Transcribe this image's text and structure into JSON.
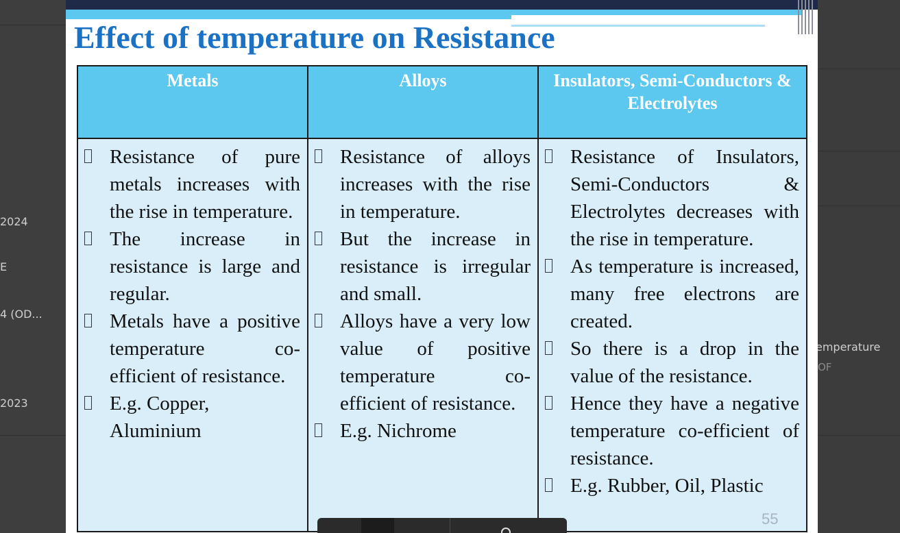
{
  "background": {
    "left_items": [
      "2024",
      "E",
      "4 (OD...",
      "2023"
    ],
    "right_items": [
      "emperature",
      "OF"
    ]
  },
  "slide": {
    "title": "Effect of temperature on Resistance",
    "page_number": "55",
    "columns": [
      {
        "header": "Metals",
        "bullets": [
          "Resistance of pure metals increases with the rise in temperature.",
          "The increase in resistance is large and regular.",
          "Metals have a positive temperature co-efficient of resistance.",
          "E.g. Copper, Aluminium"
        ]
      },
      {
        "header": "Alloys",
        "bullets": [
          "Resistance of alloys increases with the rise in temperature.",
          "But the increase in resistance is irregular and small.",
          "Alloys have a very low value of positive temperature co-efficient of resistance.",
          "E.g. Nichrome"
        ]
      },
      {
        "header": "Insulators, Semi-Conductors & Electrolytes",
        "bullets": [
          "Resistance of Insulators, Semi-Conductors & Electrolytes decreases with the rise in temperature.",
          "As temperature is increased, many free electrons are created.",
          "So there is a drop in the value of the resistance.",
          "Hence they have a negative temperature co-efficient of resistance.",
          "E.g. Rubber, Oil, Plastic"
        ]
      }
    ]
  },
  "colors": {
    "title": "#1b72c4",
    "header_bg": "#5cc8f0",
    "cell_bg": "#d9eef9",
    "topbar": "#1f2a48"
  }
}
